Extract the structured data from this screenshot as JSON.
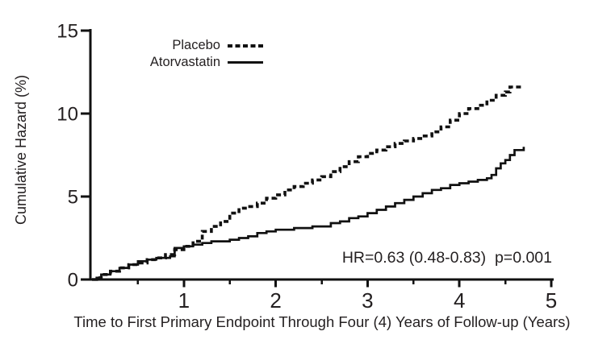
{
  "colors": {
    "line": "#111111",
    "text": "#231f20",
    "background": "#ffffff"
  },
  "chart_data": {
    "type": "line",
    "subtype": "step-cumulative-hazard",
    "title": "",
    "xlabel": "Time to First Primary Endpoint Through Four (4) Years of Follow-up (Years)",
    "ylabel": "Cumulative Hazard (%)",
    "xlim": [
      0,
      5
    ],
    "ylim": [
      0,
      15
    ],
    "xticks_major": [
      1,
      2,
      3,
      4,
      5
    ],
    "xticks_minor": [
      0.5,
      1.5,
      2.5,
      3.5,
      4.5
    ],
    "yticks": [
      0,
      5,
      10,
      15
    ],
    "grid": false,
    "legend_position": "top-left-inside",
    "annotation": "HR=0.63 (0.48-0.83)  p=0.001",
    "series": [
      {
        "name": "Placebo",
        "style": "dashed",
        "step": true,
        "x": [
          0,
          0.05,
          0.1,
          0.2,
          0.3,
          0.4,
          0.5,
          0.6,
          0.7,
          0.8,
          0.9,
          1.0,
          1.1,
          1.2,
          1.3,
          1.4,
          1.5,
          1.6,
          1.7,
          1.8,
          1.9,
          2.0,
          2.1,
          2.2,
          2.3,
          2.4,
          2.5,
          2.6,
          2.7,
          2.8,
          2.9,
          3.0,
          3.1,
          3.2,
          3.3,
          3.4,
          3.5,
          3.6,
          3.7,
          3.8,
          3.9,
          4.0,
          4.1,
          4.2,
          4.3,
          4.4,
          4.5,
          4.55,
          4.68
        ],
        "y": [
          0,
          0.1,
          0.3,
          0.5,
          0.7,
          0.9,
          1.0,
          1.2,
          1.3,
          1.5,
          1.8,
          2.0,
          2.3,
          2.9,
          3.2,
          3.5,
          4.0,
          4.3,
          4.4,
          4.6,
          4.9,
          5.1,
          5.4,
          5.6,
          5.8,
          6.0,
          6.2,
          6.5,
          6.8,
          7.1,
          7.4,
          7.6,
          7.8,
          8.0,
          8.2,
          8.35,
          8.5,
          8.65,
          8.9,
          9.2,
          9.6,
          10.0,
          10.3,
          10.5,
          10.8,
          11.1,
          11.3,
          11.6,
          11.7
        ]
      },
      {
        "name": "Atorvastatin",
        "style": "solid",
        "step": true,
        "x": [
          0,
          0.05,
          0.1,
          0.2,
          0.3,
          0.4,
          0.5,
          0.6,
          0.7,
          0.8,
          0.85,
          0.9,
          1.0,
          1.1,
          1.2,
          1.3,
          1.4,
          1.5,
          1.6,
          1.7,
          1.8,
          1.9,
          2.0,
          2.2,
          2.4,
          2.6,
          2.7,
          2.8,
          2.9,
          3.0,
          3.1,
          3.2,
          3.3,
          3.4,
          3.5,
          3.6,
          3.7,
          3.8,
          3.9,
          4.0,
          4.1,
          4.2,
          4.3,
          4.35,
          4.4,
          4.45,
          4.5,
          4.55,
          4.6,
          4.7
        ],
        "y": [
          0,
          0.1,
          0.3,
          0.5,
          0.7,
          0.9,
          1.1,
          1.2,
          1.3,
          1.3,
          1.4,
          1.9,
          2.0,
          2.1,
          2.2,
          2.3,
          2.3,
          2.4,
          2.5,
          2.6,
          2.8,
          2.9,
          3.0,
          3.1,
          3.2,
          3.4,
          3.5,
          3.7,
          3.8,
          4.0,
          4.2,
          4.4,
          4.6,
          4.8,
          5.0,
          5.2,
          5.4,
          5.5,
          5.7,
          5.8,
          5.9,
          6.0,
          6.1,
          6.3,
          6.7,
          7.0,
          7.2,
          7.5,
          7.8,
          8.0
        ]
      }
    ]
  }
}
